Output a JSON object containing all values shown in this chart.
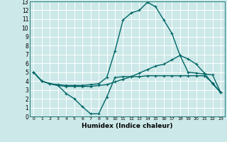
{
  "xlabel": "Humidex (Indice chaleur)",
  "bg_color": "#cce8e8",
  "grid_color": "#ffffff",
  "line_color": "#006666",
  "xlim": [
    -0.5,
    23.5
  ],
  "ylim": [
    0,
    13
  ],
  "xticks": [
    0,
    1,
    2,
    3,
    4,
    5,
    6,
    7,
    8,
    9,
    10,
    11,
    12,
    13,
    14,
    15,
    16,
    17,
    18,
    19,
    20,
    21,
    22,
    23
  ],
  "yticks": [
    0,
    1,
    2,
    3,
    4,
    5,
    6,
    7,
    8,
    9,
    10,
    11,
    12,
    13
  ],
  "line1_x": [
    0,
    1,
    2,
    3,
    4,
    5,
    6,
    7,
    8,
    9,
    10,
    11,
    12,
    13,
    14,
    15,
    16,
    17,
    18,
    19,
    20,
    21,
    22,
    23
  ],
  "line1_y": [
    5.0,
    4.0,
    3.7,
    3.5,
    2.6,
    2.0,
    1.1,
    0.3,
    0.3,
    2.2,
    4.4,
    4.5,
    4.5,
    4.5,
    4.6,
    4.6,
    4.6,
    4.6,
    4.6,
    4.6,
    4.6,
    4.6,
    3.8,
    2.7
  ],
  "line2_x": [
    0,
    1,
    2,
    3,
    4,
    5,
    6,
    7,
    8,
    9,
    10,
    11,
    12,
    13,
    14,
    15,
    16,
    17,
    18,
    19,
    20,
    21,
    22,
    23
  ],
  "line2_y": [
    5.0,
    4.0,
    3.7,
    3.5,
    3.4,
    3.4,
    3.4,
    3.4,
    3.5,
    3.6,
    3.9,
    4.2,
    4.5,
    4.9,
    5.3,
    5.7,
    5.9,
    6.4,
    6.9,
    5.0,
    4.9,
    4.8,
    4.7,
    2.7
  ],
  "line3_x": [
    0,
    1,
    2,
    3,
    4,
    5,
    6,
    7,
    8,
    9,
    10,
    11,
    12,
    13,
    14,
    15,
    16,
    17,
    18,
    19,
    20,
    21,
    22,
    23
  ],
  "line3_y": [
    5.0,
    4.0,
    3.7,
    3.6,
    3.5,
    3.5,
    3.5,
    3.6,
    3.7,
    4.4,
    7.4,
    10.9,
    11.7,
    12.0,
    12.9,
    12.4,
    10.9,
    9.4,
    6.9,
    6.5,
    5.9,
    4.9,
    3.7,
    2.7
  ]
}
